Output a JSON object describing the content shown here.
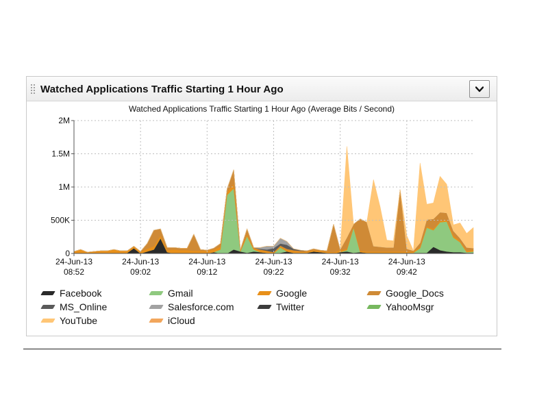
{
  "widget": {
    "title": "Watched Applications Traffic Starting 1 Hour Ago",
    "menu_icon": "chevron-down-icon"
  },
  "chart_data": {
    "type": "area",
    "title": "Watched Applications Traffic Starting 1 Hour Ago (Average Bits / Second)",
    "xlabel": "",
    "ylabel": "",
    "ylim": [
      0,
      2000000
    ],
    "yticks": [
      0,
      500000,
      1000000,
      1500000,
      2000000
    ],
    "ytick_labels": [
      "0",
      "500K",
      "1M",
      "1.5M",
      "2M"
    ],
    "xlim": [
      0,
      60
    ],
    "xticks": [
      0,
      10,
      20,
      30,
      40,
      50
    ],
    "xtick_labels": [
      [
        "24-Jun-13",
        "08:52"
      ],
      [
        "24-Jun-13",
        "09:02"
      ],
      [
        "24-Jun-13",
        "09:12"
      ],
      [
        "24-Jun-13",
        "09:22"
      ],
      [
        "24-Jun-13",
        "09:32"
      ],
      [
        "24-Jun-13",
        "09:42"
      ]
    ],
    "grid": true,
    "stacked": true,
    "legend_position": "bottom",
    "x": [
      0,
      1,
      2,
      3,
      4,
      5,
      6,
      7,
      8,
      9,
      10,
      11,
      12,
      13,
      14,
      15,
      16,
      17,
      18,
      19,
      20,
      21,
      22,
      23,
      24,
      25,
      26,
      27,
      28,
      29,
      30,
      31,
      32,
      33,
      34,
      35,
      36,
      37,
      38,
      39,
      40,
      41,
      42,
      43,
      44,
      45,
      46,
      47,
      48,
      49,
      50,
      51,
      52,
      53,
      54,
      55,
      56,
      57,
      58,
      59,
      60
    ],
    "series": [
      {
        "name": "Facebook",
        "color": "#2a2a2a",
        "values": [
          0,
          10000,
          0,
          0,
          0,
          0,
          10000,
          0,
          10000,
          80000,
          0,
          30000,
          60000,
          230000,
          20000,
          0,
          0,
          0,
          0,
          0,
          0,
          20000,
          0,
          0,
          60000,
          30000,
          10000,
          30000,
          20000,
          10000,
          0,
          10000,
          30000,
          10000,
          10000,
          10000,
          30000,
          20000,
          10000,
          0,
          20000,
          30000,
          10000,
          20000,
          10000,
          10000,
          10000,
          10000,
          10000,
          10000,
          10000,
          10000,
          10000,
          10000,
          100000,
          50000,
          30000,
          20000,
          20000,
          10000,
          10000
        ]
      },
      {
        "name": "Gmail",
        "color": "#8fc97f",
        "values": [
          0,
          0,
          0,
          0,
          0,
          0,
          0,
          0,
          0,
          0,
          0,
          0,
          0,
          0,
          0,
          0,
          0,
          0,
          0,
          0,
          0,
          0,
          60000,
          880000,
          920000,
          0,
          250000,
          30000,
          0,
          0,
          0,
          80000,
          0,
          0,
          0,
          0,
          0,
          0,
          0,
          0,
          0,
          20000,
          380000,
          0,
          0,
          0,
          0,
          0,
          0,
          0,
          0,
          0,
          70000,
          380000,
          250000,
          420000,
          450000,
          220000,
          150000,
          10000,
          20000
        ]
      },
      {
        "name": "Google",
        "color": "#e8901a",
        "values": [
          30000,
          50000,
          20000,
          30000,
          40000,
          40000,
          50000,
          40000,
          30000,
          20000,
          30000,
          40000,
          50000,
          40000,
          30000,
          60000,
          50000,
          50000,
          40000,
          40000,
          40000,
          40000,
          40000,
          40000,
          70000,
          20000,
          30000,
          20000,
          30000,
          30000,
          20000,
          20000,
          30000,
          30000,
          20000,
          20000,
          20000,
          20000,
          20000,
          20000,
          30000,
          20000,
          20000,
          20000,
          20000,
          20000,
          20000,
          20000,
          20000,
          20000,
          20000,
          20000,
          20000,
          20000,
          20000,
          20000,
          20000,
          30000,
          20000,
          20000,
          20000
        ]
      },
      {
        "name": "Google_Docs",
        "color": "#cf8a36",
        "values": [
          0,
          0,
          0,
          0,
          0,
          0,
          0,
          0,
          0,
          10000,
          0,
          80000,
          240000,
          100000,
          40000,
          30000,
          30000,
          30000,
          250000,
          20000,
          10000,
          20000,
          50000,
          50000,
          210000,
          10000,
          80000,
          10000,
          10000,
          0,
          0,
          10000,
          10000,
          10000,
          10000,
          10000,
          20000,
          10000,
          10000,
          420000,
          10000,
          170000,
          30000,
          480000,
          440000,
          80000,
          70000,
          60000,
          60000,
          930000,
          40000,
          10000,
          60000,
          100000,
          150000,
          130000,
          110000,
          70000,
          40000,
          50000,
          30000
        ]
      },
      {
        "name": "MS_Online",
        "color": "#5a5a5a",
        "values": [
          0,
          0,
          0,
          0,
          0,
          0,
          0,
          0,
          0,
          0,
          0,
          0,
          0,
          0,
          0,
          0,
          0,
          0,
          0,
          0,
          0,
          0,
          0,
          0,
          0,
          0,
          0,
          0,
          10000,
          20000,
          60000,
          30000,
          60000,
          20000,
          10000,
          0,
          0,
          0,
          0,
          0,
          0,
          0,
          0,
          0,
          0,
          0,
          0,
          0,
          0,
          0,
          0,
          0,
          0,
          0,
          0,
          0,
          0,
          0,
          0,
          0,
          0
        ]
      },
      {
        "name": "Salesforce.com",
        "color": "#a2a2a2",
        "values": [
          0,
          0,
          0,
          0,
          0,
          0,
          0,
          0,
          0,
          0,
          0,
          0,
          0,
          0,
          0,
          0,
          0,
          0,
          0,
          0,
          0,
          0,
          0,
          0,
          0,
          0,
          0,
          0,
          20000,
          50000,
          30000,
          80000,
          50000,
          0,
          0,
          0,
          0,
          0,
          0,
          0,
          0,
          0,
          0,
          0,
          0,
          0,
          0,
          0,
          0,
          0,
          0,
          0,
          0,
          0,
          0,
          0,
          0,
          0,
          0,
          0,
          0
        ]
      },
      {
        "name": "Twitter",
        "color": "#3c3c3c",
        "values": [
          0,
          0,
          0,
          0,
          0,
          0,
          0,
          0,
          0,
          0,
          0,
          0,
          0,
          0,
          0,
          0,
          0,
          0,
          0,
          0,
          0,
          0,
          0,
          0,
          0,
          0,
          0,
          0,
          0,
          0,
          0,
          0,
          0,
          0,
          0,
          0,
          0,
          0,
          0,
          0,
          0,
          0,
          0,
          0,
          0,
          0,
          0,
          0,
          0,
          0,
          0,
          0,
          0,
          0,
          0,
          0,
          0,
          0,
          0,
          0,
          0
        ]
      },
      {
        "name": "YahooMsgr",
        "color": "#77b85f",
        "values": [
          0,
          0,
          0,
          0,
          0,
          0,
          0,
          0,
          0,
          0,
          0,
          0,
          0,
          0,
          0,
          0,
          0,
          0,
          0,
          0,
          0,
          0,
          0,
          0,
          0,
          0,
          0,
          0,
          0,
          0,
          0,
          0,
          0,
          0,
          0,
          0,
          0,
          0,
          0,
          0,
          0,
          0,
          0,
          0,
          0,
          0,
          0,
          0,
          0,
          0,
          0,
          0,
          0,
          0,
          0,
          0,
          0,
          0,
          0,
          0,
          0
        ]
      },
      {
        "name": "YouTube",
        "color": "#ffc676",
        "values": [
          0,
          0,
          0,
          0,
          0,
          0,
          0,
          0,
          0,
          0,
          0,
          0,
          0,
          0,
          0,
          0,
          0,
          0,
          0,
          0,
          0,
          0,
          0,
          0,
          0,
          0,
          0,
          0,
          0,
          0,
          0,
          0,
          0,
          0,
          0,
          0,
          0,
          0,
          0,
          0,
          0,
          1370000,
          0,
          0,
          0,
          1000000,
          600000,
          110000,
          100000,
          0,
          200000,
          0,
          1200000,
          230000,
          240000,
          540000,
          430000,
          90000,
          230000,
          210000,
          310000
        ]
      },
      {
        "name": "iCloud",
        "color": "#f2a65c",
        "values": [
          0,
          0,
          0,
          0,
          0,
          0,
          0,
          0,
          0,
          0,
          0,
          0,
          0,
          0,
          0,
          0,
          0,
          0,
          0,
          0,
          0,
          0,
          0,
          0,
          0,
          0,
          0,
          0,
          0,
          0,
          0,
          0,
          0,
          0,
          0,
          0,
          0,
          0,
          0,
          0,
          0,
          0,
          0,
          0,
          0,
          0,
          0,
          0,
          0,
          0,
          0,
          0,
          0,
          0,
          0,
          0,
          0,
          0,
          0,
          0,
          0
        ]
      }
    ]
  }
}
